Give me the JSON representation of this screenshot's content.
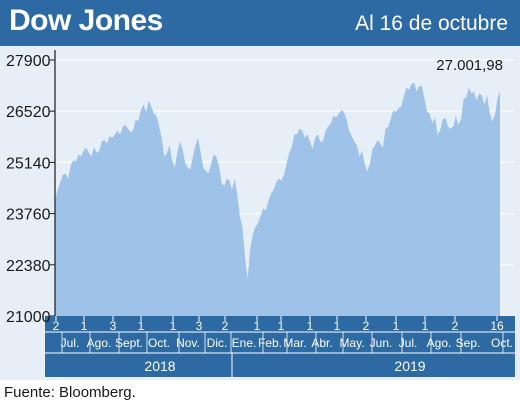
{
  "header": {
    "title": "Dow Jones",
    "subtitle": "Al 16 de octubre"
  },
  "source": "Fuente: Bloomberg.",
  "colors": {
    "header": "#2d6aa3",
    "plot_bg": "#e6eef8",
    "area": "#9fc3e8",
    "axis_bar": "#2d6aa3"
  },
  "chart_data": {
    "type": "area",
    "title": "Dow Jones",
    "subtitle": "Al 16 de octubre",
    "last_value_label": "27.001,98",
    "ylim": [
      21000,
      27900
    ],
    "yticks": [
      21000,
      22380,
      23760,
      25140,
      26520,
      27900
    ],
    "ytick_labels": [
      "21000",
      "22380",
      "23760",
      "25140",
      "26520",
      "27900"
    ],
    "grid": "horizontal",
    "x_day_labels": [
      "2",
      "1",
      "3",
      "1",
      "1",
      "3",
      "2",
      "1",
      "1",
      "1",
      "1",
      "2",
      "1",
      "1",
      "1",
      "2",
      "16"
    ],
    "x_month_labels": [
      "Jul.",
      "Ago.",
      "Sept.",
      "Oct.",
      "Nov.",
      "Dic.",
      "Ene.",
      "Feb.",
      "Mar.",
      "Abr.",
      "May.",
      "Jun.",
      "Jul.",
      "Ago.",
      "Sep.",
      "Oct."
    ],
    "x_year_labels": [
      "2018",
      "2019"
    ],
    "series": [
      {
        "values": [
          24100,
          24400,
          24600,
          24800,
          24850,
          24700,
          25050,
          25200,
          25150,
          25350,
          25300,
          25450,
          25550,
          25400,
          25300,
          25550,
          25400,
          25450,
          25700,
          25750,
          25650,
          25850,
          25800,
          25900,
          26000,
          25900,
          26100,
          26150,
          26050,
          25950,
          26000,
          26300,
          26250,
          26550,
          26700,
          26500,
          26800,
          26650,
          26450,
          26400,
          26100,
          25800,
          25300,
          25400,
          25600,
          25200,
          25000,
          25400,
          25700,
          25500,
          25150,
          25000,
          24950,
          25300,
          25600,
          25800,
          25400,
          25000,
          24900,
          24850,
          25100,
          25350,
          25300,
          25050,
          24600,
          24500,
          24700,
          24650,
          24400,
          24700,
          24300,
          23700,
          23400,
          22600,
          22000,
          22800,
          23200,
          23400,
          23500,
          23700,
          23900,
          23850,
          24100,
          24300,
          24400,
          24600,
          24700,
          24650,
          24800,
          25100,
          25400,
          25550,
          25900,
          25900,
          26050,
          26000,
          25800,
          25900,
          25700,
          25500,
          25800,
          25900,
          25700,
          25700,
          26000,
          26100,
          26200,
          26400,
          26350,
          26450,
          26550,
          26500,
          26300,
          26000,
          25850,
          25700,
          25600,
          25300,
          25450,
          25100,
          24900,
          25100,
          25500,
          25600,
          25750,
          25650,
          25550,
          26050,
          26100,
          26300,
          26550,
          26500,
          26600,
          26650,
          26900,
          27150,
          27100,
          27250,
          27300,
          27050,
          27200,
          27200,
          26850,
          26500,
          26450,
          26200,
          26350,
          25900,
          26000,
          26300,
          26350,
          26100,
          26050,
          26100,
          26400,
          26150,
          26300,
          26850,
          26900,
          27150,
          27000,
          27050,
          26800,
          27000,
          26950,
          26700,
          26950,
          26500,
          26250,
          26400,
          26850,
          27050
        ]
      }
    ]
  }
}
